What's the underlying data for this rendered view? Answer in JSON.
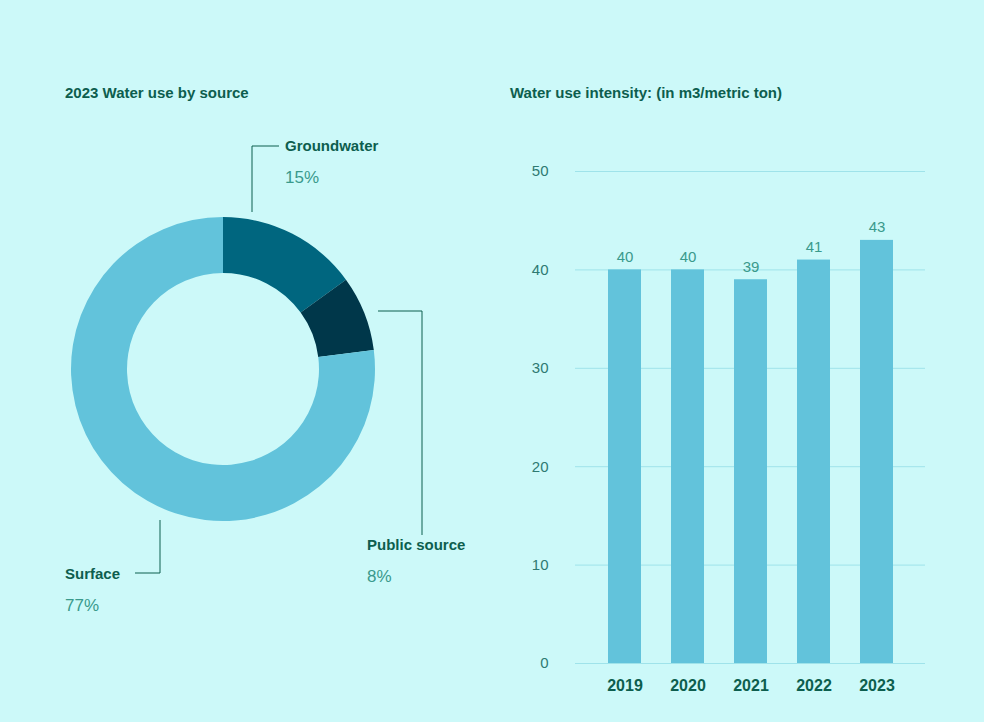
{
  "chart_data": [
    {
      "type": "pie",
      "title": "2023 Water use by source",
      "categories": [
        "Groundwater",
        "Public source",
        "Surface"
      ],
      "values": [
        15,
        8,
        77
      ],
      "value_labels": [
        "15%",
        "8%",
        "77%"
      ],
      "colors": [
        "#00667f",
        "#00374a",
        "#62c3db"
      ],
      "data_labels": true
    },
    {
      "type": "bar",
      "title": "Water use intensity: (in m3/metric ton)",
      "categories": [
        "2019",
        "2020",
        "2021",
        "2022",
        "2023"
      ],
      "values": [
        40,
        40,
        39,
        41,
        43
      ],
      "color": "#62c3db",
      "ylim": [
        0,
        50
      ],
      "yticks": [
        0,
        10,
        20,
        30,
        40,
        50
      ],
      "grid": true,
      "data_labels": true
    }
  ]
}
